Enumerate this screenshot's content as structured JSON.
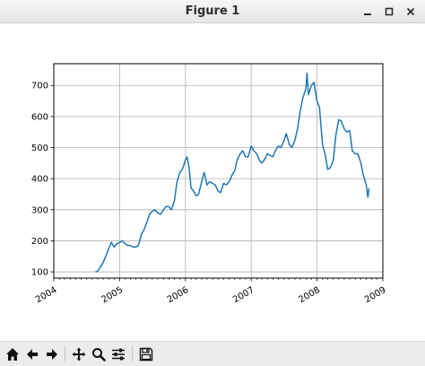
{
  "window": {
    "title": "Figure 1",
    "controls": [
      "minimize-icon",
      "maximize-icon",
      "close-icon"
    ]
  },
  "toolbar": {
    "buttons": [
      {
        "name": "home-icon"
      },
      {
        "name": "back-arrow-icon"
      },
      {
        "name": "forward-arrow-icon"
      },
      {
        "name": "pan-icon"
      },
      {
        "name": "zoom-icon"
      },
      {
        "name": "subplots-icon"
      },
      {
        "name": "save-icon"
      }
    ]
  },
  "chart_data": {
    "type": "line",
    "title": "",
    "xlabel": "",
    "ylabel": "",
    "x_tick_labels": [
      "2004",
      "2005",
      "2006",
      "2007",
      "2008",
      "2009"
    ],
    "y_tick_labels": [
      "100",
      "200",
      "300",
      "400",
      "500",
      "600",
      "700"
    ],
    "xlim": [
      "2004-01-01",
      "2009-01-01"
    ],
    "ylim": [
      80,
      770
    ],
    "grid": true,
    "line_color": "#1f77b4",
    "series": [
      {
        "x": [
          "2004-08-19",
          "2004-09-01",
          "2004-09-15",
          "2004-10-01",
          "2004-10-15",
          "2004-11-01",
          "2004-11-15",
          "2004-12-01",
          "2004-12-15",
          "2005-01-01",
          "2005-01-15",
          "2005-02-01",
          "2005-02-15",
          "2005-03-01",
          "2005-03-15",
          "2005-04-01",
          "2005-04-15",
          "2005-05-01",
          "2005-05-15",
          "2005-06-01",
          "2005-06-15",
          "2005-07-01",
          "2005-07-15",
          "2005-08-01",
          "2005-08-15",
          "2005-09-01",
          "2005-09-15",
          "2005-10-01",
          "2005-10-15",
          "2005-11-01",
          "2005-11-15",
          "2005-12-01",
          "2005-12-15",
          "2006-01-01",
          "2006-01-10",
          "2006-01-20",
          "2006-02-01",
          "2006-02-15",
          "2006-03-01",
          "2006-03-15",
          "2006-04-01",
          "2006-04-15",
          "2006-05-01",
          "2006-05-15",
          "2006-06-01",
          "2006-06-15",
          "2006-07-01",
          "2006-07-15",
          "2006-08-01",
          "2006-08-15",
          "2006-09-01",
          "2006-09-15",
          "2006-10-01",
          "2006-10-15",
          "2006-11-01",
          "2006-11-15",
          "2006-12-01",
          "2006-12-15",
          "2007-01-01",
          "2007-01-15",
          "2007-02-01",
          "2007-02-15",
          "2007-03-01",
          "2007-03-15",
          "2007-04-01",
          "2007-04-15",
          "2007-05-01",
          "2007-05-15",
          "2007-06-01",
          "2007-06-15",
          "2007-07-01",
          "2007-07-15",
          "2007-08-01",
          "2007-08-15",
          "2007-09-01",
          "2007-09-15",
          "2007-10-01",
          "2007-10-15",
          "2007-11-01",
          "2007-11-07",
          "2007-11-15",
          "2007-12-01",
          "2007-12-15",
          "2008-01-01",
          "2008-01-15",
          "2008-02-01",
          "2008-02-15",
          "2008-03-01",
          "2008-03-15",
          "2008-04-01",
          "2008-04-15",
          "2008-05-01",
          "2008-05-15",
          "2008-06-01",
          "2008-06-15",
          "2008-07-01",
          "2008-07-15",
          "2008-08-01",
          "2008-08-15",
          "2008-09-01",
          "2008-09-15",
          "2008-10-01",
          "2008-10-10",
          "2008-10-17"
        ],
        "y": [
          100,
          102,
          115,
          130,
          150,
          175,
          195,
          180,
          190,
          195,
          200,
          190,
          185,
          185,
          180,
          180,
          185,
          220,
          235,
          260,
          285,
          295,
          300,
          290,
          285,
          300,
          310,
          310,
          300,
          330,
          390,
          420,
          430,
          460,
          470,
          440,
          370,
          360,
          345,
          350,
          390,
          420,
          380,
          390,
          385,
          380,
          360,
          355,
          385,
          380,
          390,
          410,
          425,
          460,
          480,
          490,
          470,
          470,
          505,
          490,
          480,
          460,
          450,
          460,
          480,
          475,
          470,
          490,
          505,
          500,
          520,
          545,
          510,
          500,
          525,
          560,
          620,
          660,
          690,
          740,
          670,
          700,
          710,
          650,
          630,
          510,
          480,
          430,
          435,
          460,
          540,
          590,
          585,
          560,
          550,
          555,
          490,
          480,
          480,
          450,
          410,
          380,
          340,
          370
        ]
      }
    ]
  }
}
